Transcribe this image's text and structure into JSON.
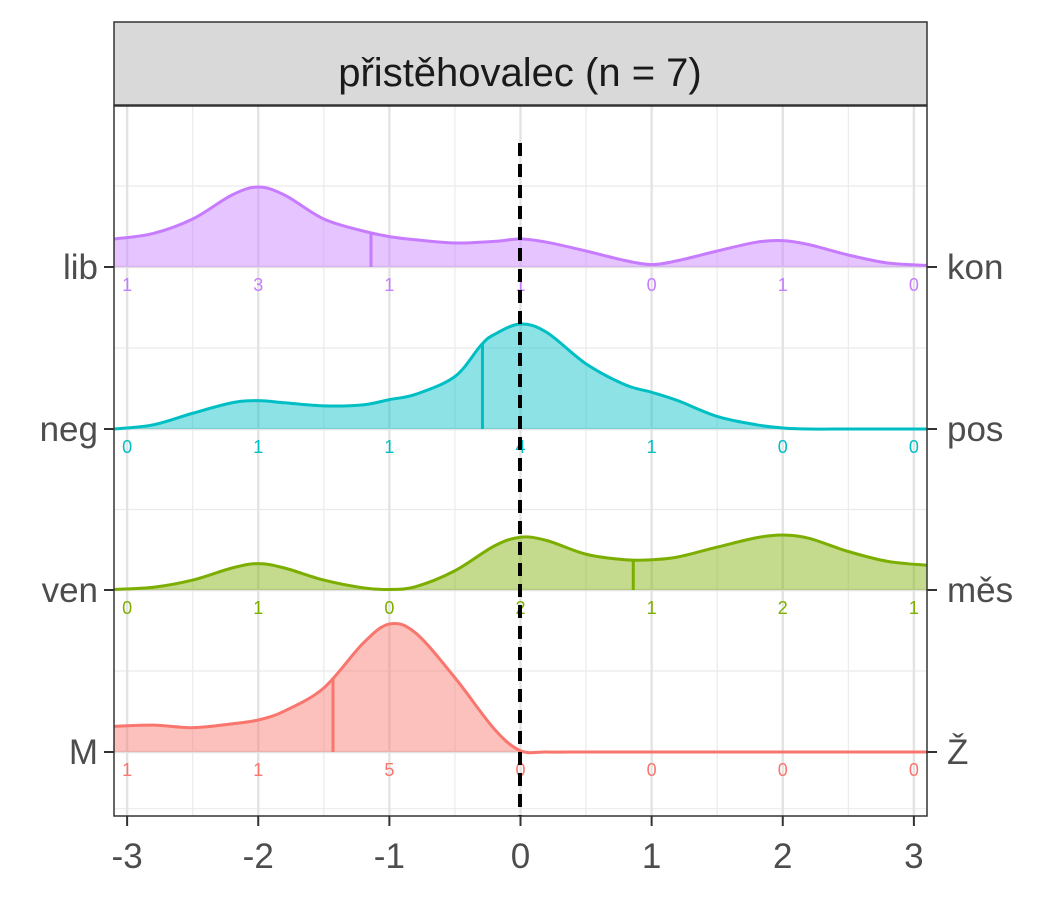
{
  "chart_data": {
    "type": "ridgeline",
    "title": "přistěhovalec (n = 7)",
    "xlim": [
      -3.1,
      3.1
    ],
    "x_ticks": [
      -3,
      -2,
      -1,
      0,
      1,
      2,
      3
    ],
    "x_tick_labels": [
      "-3",
      "-2",
      "-1",
      "0",
      "1",
      "2",
      "3"
    ],
    "reference_line_x": 0,
    "colors": {
      "lib_kon": "#c77cff",
      "neg_pos": "#00bfc4",
      "ven_mes": "#7cae00",
      "m_z": "#f8766d"
    },
    "series": [
      {
        "left_label": "lib",
        "right_label": "kon",
        "color_key": "lib_kon",
        "counts": [
          "1",
          "3",
          "1",
          "1",
          "0",
          "1",
          "0"
        ],
        "mean": -1.14,
        "density_x": [
          -3.1,
          -2.8,
          -2.5,
          -2.2,
          -2,
          -1.8,
          -1.5,
          -1.2,
          -1,
          -0.8,
          -0.5,
          -0.2,
          0,
          0.2,
          0.5,
          0.8,
          1,
          1.2,
          1.5,
          1.8,
          2,
          2.2,
          2.5,
          2.8,
          3.1
        ],
        "density_y": [
          0.35,
          0.42,
          0.6,
          0.9,
          1.0,
          0.9,
          0.6,
          0.45,
          0.38,
          0.34,
          0.3,
          0.32,
          0.35,
          0.31,
          0.2,
          0.08,
          0.03,
          0.08,
          0.2,
          0.31,
          0.33,
          0.28,
          0.15,
          0.05,
          0.02
        ],
        "peak_px": 80
      },
      {
        "left_label": "neg",
        "right_label": "pos",
        "color_key": "neg_pos",
        "counts": [
          "0",
          "1",
          "1",
          "4",
          "1",
          "0",
          "0"
        ],
        "mean": -0.29,
        "density_x": [
          -3.1,
          -2.8,
          -2.5,
          -2.2,
          -2,
          -1.8,
          -1.5,
          -1.2,
          -1,
          -0.8,
          -0.5,
          -0.3,
          -0.2,
          0,
          0.2,
          0.5,
          0.8,
          1,
          1.2,
          1.5,
          1.8,
          2,
          2.2,
          2.5,
          2.8,
          3.1
        ],
        "density_y": [
          0.0,
          0.04,
          0.15,
          0.25,
          0.27,
          0.25,
          0.22,
          0.23,
          0.28,
          0.33,
          0.5,
          0.8,
          0.9,
          1.0,
          0.92,
          0.62,
          0.42,
          0.35,
          0.27,
          0.12,
          0.04,
          0.01,
          0.0,
          0.0,
          0.0,
          0.0
        ],
        "peak_px": 105
      },
      {
        "left_label": "ven",
        "right_label": "měs",
        "color_key": "ven_mes",
        "counts": [
          "0",
          "1",
          "0",
          "2",
          "1",
          "2",
          "1"
        ],
        "mean": 0.86,
        "density_x": [
          -3.1,
          -2.8,
          -2.5,
          -2.2,
          -2,
          -1.8,
          -1.5,
          -1.2,
          -1,
          -0.8,
          -0.5,
          -0.2,
          0,
          0.2,
          0.5,
          0.8,
          1,
          1.2,
          1.5,
          1.8,
          2,
          2.2,
          2.5,
          2.8,
          3.1
        ],
        "density_y": [
          0.01,
          0.05,
          0.18,
          0.4,
          0.48,
          0.4,
          0.18,
          0.04,
          0.01,
          0.06,
          0.35,
          0.8,
          0.96,
          0.9,
          0.65,
          0.55,
          0.55,
          0.6,
          0.78,
          0.95,
          1.0,
          0.94,
          0.7,
          0.52,
          0.45
        ],
        "peak_px": 55
      },
      {
        "left_label": "M",
        "right_label": "Ž",
        "color_key": "m_z",
        "counts": [
          "1",
          "1",
          "5",
          "0",
          "0",
          "0",
          "0"
        ],
        "mean": -1.43,
        "density_x": [
          -3.1,
          -2.8,
          -2.5,
          -2.2,
          -2,
          -1.8,
          -1.5,
          -1.2,
          -1,
          -0.8,
          -0.5,
          -0.2,
          0,
          0.2,
          0.5,
          1,
          1.5,
          2,
          2.5,
          3.1
        ],
        "density_y": [
          0.2,
          0.21,
          0.19,
          0.22,
          0.25,
          0.32,
          0.5,
          0.85,
          1.0,
          0.93,
          0.58,
          0.18,
          0.01,
          0.0,
          0.0,
          0.0,
          0.0,
          0.0,
          0.0,
          0.0
        ],
        "peak_px": 128
      }
    ]
  }
}
